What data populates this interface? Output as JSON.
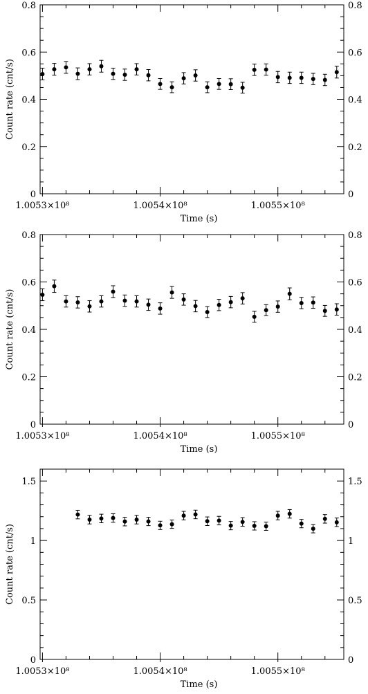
{
  "chart_data": [
    {
      "type": "scatter",
      "title": "",
      "xlabel": "Time (s)",
      "ylabel": "Count rate (cnt/s)",
      "xlim": [
        100529800,
        100555600
      ],
      "ylim": [
        0,
        0.8
      ],
      "x_ticks": [
        100530000,
        100540000,
        100550000
      ],
      "x_tick_labels": [
        "1.0053×10⁸",
        "1.0054×10⁸",
        "1.0055×10⁸"
      ],
      "y_ticks": [
        0,
        0.2,
        0.4,
        0.6,
        0.8
      ],
      "y_tick_labels": [
        "0",
        "0.2",
        "0.4",
        "0.6",
        "0.8"
      ],
      "grid": false,
      "legend": "none",
      "series": [
        {
          "x": [
            100530000,
            100531000,
            100532000,
            100533000,
            100534000,
            100535000,
            100536000,
            100537000,
            100538000,
            100539000,
            100540000,
            100541000,
            100542000,
            100543000,
            100544000,
            100545000,
            100546000,
            100547000,
            100548000,
            100549000,
            100550000,
            100551000,
            100552000,
            100553000,
            100554000,
            100555000
          ],
          "y": [
            0.507,
            0.527,
            0.535,
            0.508,
            0.527,
            0.54,
            0.508,
            0.504,
            0.527,
            0.502,
            0.465,
            0.451,
            0.489,
            0.501,
            0.451,
            0.465,
            0.464,
            0.449,
            0.525,
            0.526,
            0.494,
            0.491,
            0.491,
            0.486,
            0.482,
            0.515
          ],
          "yerr": [
            0.025,
            0.025,
            0.025,
            0.025,
            0.024,
            0.025,
            0.024,
            0.024,
            0.024,
            0.024,
            0.023,
            0.023,
            0.024,
            0.024,
            0.023,
            0.023,
            0.023,
            0.023,
            0.024,
            0.024,
            0.024,
            0.024,
            0.024,
            0.024,
            0.024,
            0.025
          ]
        }
      ]
    },
    {
      "type": "scatter",
      "title": "",
      "xlabel": "Time (s)",
      "ylabel": "Count rate (cnt/s)",
      "xlim": [
        100529800,
        100555600
      ],
      "ylim": [
        0,
        0.8
      ],
      "x_ticks": [
        100530000,
        100540000,
        100550000
      ],
      "x_tick_labels": [
        "1.0053×10⁸",
        "1.0054×10⁸",
        "1.0055×10⁸"
      ],
      "y_ticks": [
        0,
        0.2,
        0.4,
        0.6,
        0.8
      ],
      "y_tick_labels": [
        "0",
        "0.2",
        "0.4",
        "0.6",
        "0.8"
      ],
      "grid": false,
      "legend": "none",
      "series": [
        {
          "x": [
            100530000,
            100531000,
            100532000,
            100533000,
            100534000,
            100535000,
            100536000,
            100537000,
            100538000,
            100539000,
            100540000,
            100541000,
            100542000,
            100543000,
            100544000,
            100545000,
            100546000,
            100547000,
            100548000,
            100549000,
            100550000,
            100551000,
            100552000,
            100553000,
            100554000,
            100555000
          ],
          "y": [
            0.546,
            0.582,
            0.518,
            0.514,
            0.497,
            0.518,
            0.559,
            0.521,
            0.518,
            0.504,
            0.488,
            0.556,
            0.526,
            0.498,
            0.473,
            0.503,
            0.515,
            0.531,
            0.453,
            0.481,
            0.496,
            0.55,
            0.511,
            0.513,
            0.478,
            0.484
          ],
          "yerr": [
            0.025,
            0.026,
            0.024,
            0.024,
            0.024,
            0.024,
            0.025,
            0.024,
            0.024,
            0.024,
            0.024,
            0.025,
            0.024,
            0.024,
            0.023,
            0.024,
            0.024,
            0.024,
            0.023,
            0.023,
            0.024,
            0.025,
            0.024,
            0.024,
            0.023,
            0.024
          ]
        }
      ]
    },
    {
      "type": "scatter",
      "title": "",
      "xlabel": "Time (s)",
      "ylabel": "Count rate (cnt/s)",
      "xlim": [
        100529800,
        100555600
      ],
      "ylim": [
        0,
        1.6
      ],
      "x_ticks": [
        100530000,
        100540000,
        100550000
      ],
      "x_tick_labels": [
        "1.0053×10⁸",
        "1.0054×10⁸",
        "1.0055×10⁸"
      ],
      "y_ticks": [
        0,
        0.5,
        1,
        1.5
      ],
      "y_tick_labels": [
        "0",
        "0.5",
        "1",
        "1.5"
      ],
      "grid": false,
      "legend": "none",
      "series": [
        {
          "x": [
            100533000,
            100534000,
            100535000,
            100536000,
            100537000,
            100538000,
            100539000,
            100540000,
            100541000,
            100542000,
            100543000,
            100544000,
            100545000,
            100546000,
            100547000,
            100548000,
            100549000,
            100550000,
            100551000,
            100552000,
            100553000,
            100554000,
            100555000
          ],
          "y": [
            1.218,
            1.175,
            1.185,
            1.189,
            1.159,
            1.175,
            1.16,
            1.127,
            1.137,
            1.209,
            1.219,
            1.162,
            1.167,
            1.125,
            1.156,
            1.123,
            1.12,
            1.209,
            1.224,
            1.142,
            1.099,
            1.182,
            1.153
          ],
          "yerr": [
            0.036,
            0.036,
            0.036,
            0.036,
            0.036,
            0.036,
            0.035,
            0.035,
            0.035,
            0.036,
            0.036,
            0.036,
            0.036,
            0.035,
            0.036,
            0.035,
            0.035,
            0.036,
            0.036,
            0.035,
            0.035,
            0.036,
            0.036
          ]
        }
      ]
    }
  ]
}
